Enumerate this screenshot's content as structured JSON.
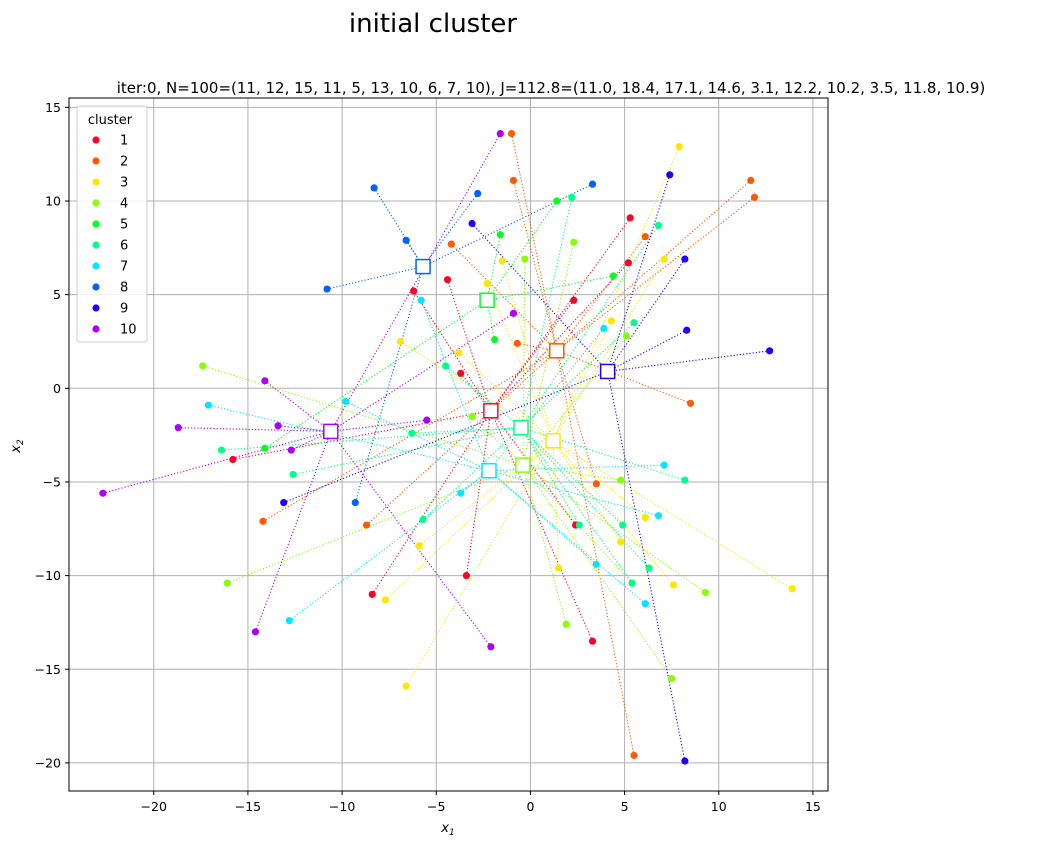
{
  "figure": {
    "suptitle": "initial cluster"
  },
  "chart_data": {
    "type": "scatter",
    "title": "iter:0, N=100=(11, 12, 15, 11, 5, 13, 10, 6, 7, 10), J=112.8=(11.0, 18.4, 17.1, 14.6, 3.1, 12.2, 10.2, 3.5, 11.8, 10.9)",
    "xlabel": "x",
    "xlabel_sub": "1",
    "ylabel": "x",
    "ylabel_sub": "2",
    "xlim": [
      -24.5,
      15.8
    ],
    "ylim": [
      -21.5,
      15.5
    ],
    "xticks": [
      -20,
      -15,
      -10,
      -5,
      0,
      5,
      10,
      15
    ],
    "yticks": [
      -20,
      -15,
      -10,
      -5,
      0,
      5,
      10,
      15
    ],
    "grid": true,
    "legend": {
      "title": "cluster",
      "placement": "upper-left"
    },
    "series": [
      {
        "name": "1",
        "color": "#ff0029",
        "centroid": [
          -2.1,
          -1.2
        ],
        "points": [
          [
            -15.8,
            -3.8
          ],
          [
            -8.4,
            -11.0
          ],
          [
            -6.2,
            5.2
          ],
          [
            -4.4,
            5.8
          ],
          [
            -3.7,
            0.8
          ],
          [
            -3.4,
            -10.0
          ],
          [
            2.3,
            4.7
          ],
          [
            2.4,
            -7.3
          ],
          [
            3.3,
            -13.5
          ],
          [
            5.2,
            6.7
          ],
          [
            5.3,
            9.1
          ]
        ]
      },
      {
        "name": "2",
        "color": "#ff5a00",
        "centroid": [
          1.4,
          2.0
        ],
        "points": [
          [
            -14.2,
            -7.1
          ],
          [
            -8.7,
            -7.3
          ],
          [
            -4.2,
            7.7
          ],
          [
            -1.0,
            13.6
          ],
          [
            -0.9,
            11.1
          ],
          [
            -0.7,
            2.4
          ],
          [
            3.5,
            -5.1
          ],
          [
            5.5,
            -19.6
          ],
          [
            6.1,
            8.1
          ],
          [
            8.5,
            -0.8
          ],
          [
            11.7,
            11.1
          ],
          [
            11.9,
            10.2
          ]
        ]
      },
      {
        "name": "3",
        "color": "#ffe600",
        "centroid": [
          1.2,
          -2.8
        ],
        "points": [
          [
            -7.7,
            -11.3
          ],
          [
            -6.9,
            2.5
          ],
          [
            -6.6,
            -15.9
          ],
          [
            -5.9,
            -8.4
          ],
          [
            -3.8,
            1.9
          ],
          [
            -2.3,
            5.6
          ],
          [
            -1.5,
            6.8
          ],
          [
            1.5,
            -9.6
          ],
          [
            4.3,
            3.6
          ],
          [
            4.8,
            -8.2
          ],
          [
            6.1,
            -6.9
          ],
          [
            7.1,
            6.9
          ],
          [
            7.6,
            -10.5
          ],
          [
            7.9,
            12.9
          ],
          [
            13.9,
            -10.7
          ]
        ]
      },
      {
        "name": "4",
        "color": "#88ff00",
        "centroid": [
          -0.4,
          -4.1
        ],
        "points": [
          [
            -17.4,
            1.2
          ],
          [
            -16.1,
            -10.4
          ],
          [
            -3.1,
            -1.5
          ],
          [
            -0.3,
            6.9
          ],
          [
            1.9,
            -12.6
          ],
          [
            2.3,
            7.8
          ],
          [
            4.8,
            -4.9
          ],
          [
            5.1,
            2.8
          ],
          [
            5.4,
            -10.4
          ],
          [
            7.5,
            -15.5
          ],
          [
            9.3,
            -10.9
          ]
        ]
      },
      {
        "name": "5",
        "color": "#00ff22",
        "centroid": [
          -2.3,
          4.7
        ],
        "points": [
          [
            -14.1,
            -3.2
          ],
          [
            -1.9,
            2.6
          ],
          [
            -1.6,
            8.2
          ],
          [
            1.4,
            10.0
          ],
          [
            4.4,
            6.0
          ]
        ]
      },
      {
        "name": "6",
        "color": "#00ff88",
        "centroid": [
          -0.5,
          -2.1
        ],
        "points": [
          [
            -16.4,
            -3.3
          ],
          [
            -12.6,
            -4.6
          ],
          [
            -6.3,
            -2.4
          ],
          [
            -5.7,
            -7.0
          ],
          [
            -4.5,
            1.2
          ],
          [
            2.2,
            10.2
          ],
          [
            2.6,
            -7.3
          ],
          [
            4.9,
            -7.3
          ],
          [
            5.5,
            3.5
          ],
          [
            6.3,
            -9.6
          ],
          [
            6.8,
            8.7
          ],
          [
            8.2,
            -4.9
          ],
          [
            5.4,
            -10.4
          ]
        ]
      },
      {
        "name": "7",
        "color": "#00e8ff",
        "centroid": [
          -2.2,
          -4.4
        ],
        "points": [
          [
            -17.1,
            -0.9
          ],
          [
            -12.8,
            -12.4
          ],
          [
            -9.8,
            -0.7
          ],
          [
            -5.8,
            4.7
          ],
          [
            -3.7,
            -5.6
          ],
          [
            3.5,
            -9.4
          ],
          [
            3.9,
            3.2
          ],
          [
            6.1,
            -11.5
          ],
          [
            6.8,
            -6.8
          ],
          [
            7.1,
            -4.1
          ]
        ]
      },
      {
        "name": "8",
        "color": "#0062ff",
        "centroid": [
          -5.7,
          6.5
        ],
        "points": [
          [
            -10.8,
            5.3
          ],
          [
            -8.3,
            10.7
          ],
          [
            -6.6,
            7.9
          ],
          [
            -2.8,
            10.4
          ],
          [
            3.3,
            10.9
          ],
          [
            -9.3,
            -6.1
          ]
        ]
      },
      {
        "name": "9",
        "color": "#2200ff",
        "centroid": [
          4.1,
          0.9
        ],
        "points": [
          [
            -13.1,
            -6.1
          ],
          [
            -3.1,
            8.8
          ],
          [
            7.4,
            11.4
          ],
          [
            8.2,
            6.9
          ],
          [
            8.3,
            3.1
          ],
          [
            8.2,
            -19.9
          ],
          [
            12.7,
            2.0
          ]
        ]
      },
      {
        "name": "10",
        "color": "#aa00ff",
        "centroid": [
          -10.6,
          -2.3
        ],
        "points": [
          [
            -22.7,
            -5.6
          ],
          [
            -18.7,
            -2.1
          ],
          [
            -14.6,
            -13.0
          ],
          [
            -14.1,
            0.4
          ],
          [
            -13.4,
            -2.0
          ],
          [
            -12.7,
            -3.3
          ],
          [
            -5.5,
            -1.7
          ],
          [
            -2.1,
            -13.8
          ],
          [
            -0.9,
            4.0
          ],
          [
            -1.6,
            13.6
          ]
        ]
      }
    ]
  }
}
